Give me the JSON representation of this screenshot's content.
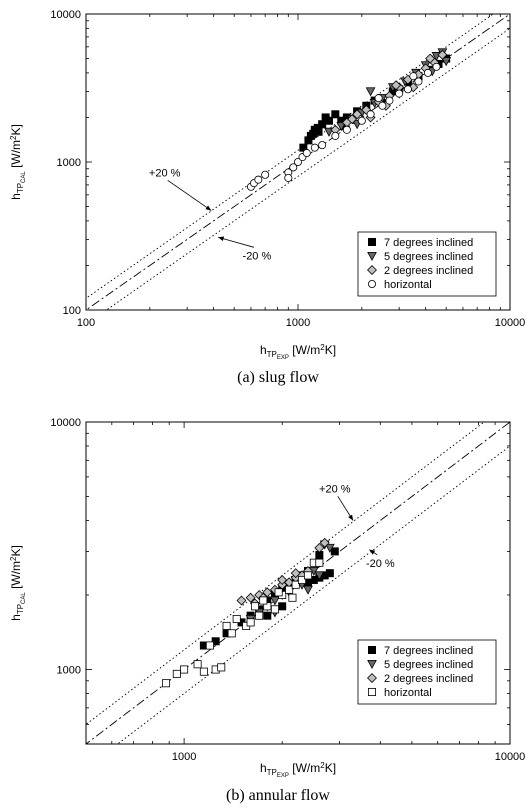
{
  "chart_data": [
    {
      "type": "scatter",
      "caption": "(a) slug flow",
      "xlabel": {
        "main": "h",
        "sub": "TP",
        "subsub": "EXP",
        "unit": " [W/m",
        "sup": "2",
        "tail": "K]"
      },
      "ylabel": {
        "main": "h",
        "sub": "TP",
        "subsub": "CAL",
        "unit": " [W/m",
        "sup": "2",
        "tail": "K]"
      },
      "xscale": "log",
      "yscale": "log",
      "xlim": [
        100,
        10000
      ],
      "ylim": [
        100,
        10000
      ],
      "xticks": [
        100,
        1000,
        10000
      ],
      "xtick_labels": [
        "100",
        "1000",
        "10000"
      ],
      "yticks": [
        100,
        1000,
        10000
      ],
      "ytick_labels": [
        "100",
        "1000",
        "10000"
      ],
      "grid": false,
      "legend_position": "bottom-right",
      "lines": [
        {
          "name": "parity",
          "style": "dash-dot",
          "factor": 1.0
        },
        {
          "name": "+20 %",
          "style": "dotted",
          "factor": 1.2
        },
        {
          "name": "-20 %",
          "style": "dotted",
          "factor": 0.8
        }
      ],
      "annotations": [
        {
          "text": "+20 %",
          "x": 235,
          "y": 800,
          "arrow_to": [
            390,
            470
          ]
        },
        {
          "text": "-20 %",
          "x": 640,
          "y": 220,
          "arrow_to": [
            420,
            310
          ]
        }
      ],
      "series": [
        {
          "name": "7 degrees inclined",
          "marker": "square",
          "fill": "#000000",
          "points": [
            [
              1060,
              1250
            ],
            [
              1120,
              1400
            ],
            [
              1180,
              1550
            ],
            [
              1240,
              1700
            ],
            [
              1300,
              1800
            ],
            [
              1150,
              1500
            ],
            [
              1200,
              1650
            ],
            [
              1400,
              1900
            ],
            [
              1500,
              2100
            ],
            [
              1600,
              1900
            ],
            [
              1700,
              2000
            ],
            [
              1900,
              2200
            ],
            [
              2100,
              2400
            ],
            [
              2300,
              2600
            ],
            [
              2500,
              2500
            ],
            [
              2800,
              3000
            ],
            [
              3000,
              3100
            ],
            [
              3300,
              3500
            ],
            [
              3700,
              3800
            ],
            [
              4200,
              4200
            ],
            [
              4600,
              4600
            ],
            [
              5000,
              5000
            ],
            [
              1250,
              1600
            ],
            [
              1350,
              2000
            ],
            [
              1650,
              1750
            ]
          ]
        },
        {
          "name": "5 degrees inclined",
          "marker": "triangle-down",
          "fill": "#666666",
          "points": [
            [
              1400,
              1600
            ],
            [
              1600,
              1750
            ],
            [
              1800,
              1950
            ],
            [
              2000,
              2150
            ],
            [
              2200,
              3000
            ],
            [
              2500,
              2700
            ],
            [
              2800,
              3200
            ],
            [
              3200,
              3500
            ],
            [
              3600,
              4000
            ],
            [
              4000,
              4500
            ],
            [
              4500,
              5200
            ],
            [
              4800,
              5500
            ],
            [
              1900,
              1800
            ],
            [
              2300,
              2500
            ],
            [
              3000,
              2900
            ],
            [
              4300,
              4100
            ],
            [
              5000,
              4800
            ]
          ]
        },
        {
          "name": "2 degrees inclined",
          "marker": "diamond",
          "fill": "#bfbfbf",
          "points": [
            [
              1500,
              1650
            ],
            [
              1700,
              1850
            ],
            [
              1900,
              2100
            ],
            [
              2100,
              2250
            ],
            [
              2400,
              2550
            ],
            [
              2700,
              2800
            ],
            [
              3000,
              3200
            ],
            [
              3300,
              3600
            ],
            [
              3700,
              3900
            ],
            [
              4000,
              4300
            ],
            [
              4400,
              4700
            ],
            [
              4800,
              5300
            ],
            [
              2200,
              2000
            ],
            [
              2600,
              2400
            ],
            [
              3500,
              3200
            ],
            [
              4200,
              5000
            ],
            [
              2900,
              3300
            ],
            [
              1800,
              1950
            ]
          ]
        },
        {
          "name": "horizontal",
          "marker": "circle",
          "fill": "#ffffff",
          "points": [
            [
              600,
              680
            ],
            [
              620,
              720
            ],
            [
              650,
              760
            ],
            [
              700,
              820
            ],
            [
              900,
              850
            ],
            [
              950,
              920
            ],
            [
              1000,
              1000
            ],
            [
              1050,
              1080
            ],
            [
              1100,
              1150
            ],
            [
              1300,
              1300
            ],
            [
              1500,
              1500
            ],
            [
              1700,
              1650
            ],
            [
              2000,
              1900
            ],
            [
              2200,
              2100
            ],
            [
              2500,
              2400
            ],
            [
              2700,
              2600
            ],
            [
              3000,
              2900
            ],
            [
              3300,
              3100
            ],
            [
              3700,
              3500
            ],
            [
              4100,
              4000
            ],
            [
              4500,
              4400
            ],
            [
              900,
              780
            ],
            [
              1200,
              1250
            ],
            [
              2400,
              2700
            ],
            [
              3500,
              3800
            ]
          ]
        }
      ]
    },
    {
      "type": "scatter",
      "caption": "(b) annular flow",
      "xlabel": {
        "main": "h",
        "sub": "TP",
        "subsub": "EXP",
        "unit": " [W/m",
        "sup": "2",
        "tail": "K]"
      },
      "ylabel": {
        "main": "h",
        "sub": "TP",
        "subsub": "CAL",
        "unit": " [W/m",
        "sup": "2",
        "tail": "K]"
      },
      "xscale": "log",
      "yscale": "log",
      "xlim": [
        500,
        10000
      ],
      "ylim": [
        500,
        10000
      ],
      "xticks": [
        1000,
        10000
      ],
      "xtick_labels": [
        "1000",
        "10000"
      ],
      "yticks": [
        1000,
        10000
      ],
      "ytick_labels": [
        "1000",
        "10000"
      ],
      "grid": false,
      "legend_position": "bottom-right",
      "lines": [
        {
          "name": "parity",
          "style": "dash-dot",
          "factor": 1.0
        },
        {
          "name": "+20 %",
          "style": "dotted",
          "factor": 1.2
        },
        {
          "name": "-20 %",
          "style": "dotted",
          "factor": 0.8
        }
      ],
      "annotations": [
        {
          "text": "+20 %",
          "x": 2900,
          "y": 5200,
          "arrow_to": [
            3300,
            4000
          ]
        },
        {
          "text": "-20 %",
          "x": 4000,
          "y": 2600,
          "arrow_to": [
            3700,
            3050
          ]
        }
      ],
      "series": [
        {
          "name": "7 degrees inclined",
          "marker": "square",
          "fill": "#000000",
          "points": [
            [
              1150,
              1250
            ],
            [
              1250,
              1300
            ],
            [
              1350,
              1400
            ],
            [
              1500,
              1550
            ],
            [
              1600,
              1650
            ],
            [
              1700,
              1750
            ],
            [
              1800,
              1900
            ],
            [
              1900,
              2000
            ],
            [
              2000,
              2100
            ],
            [
              2100,
              2200
            ],
            [
              2200,
              2300
            ],
            [
              2300,
              2400
            ],
            [
              2400,
              2250
            ],
            [
              2500,
              2300
            ],
            [
              2600,
              2350
            ],
            [
              2700,
              2400
            ],
            [
              2800,
              2450
            ],
            [
              2900,
              3000
            ],
            [
              2600,
              2900
            ],
            [
              2000,
              1800
            ],
            [
              1800,
              1650
            ],
            [
              2400,
              2500
            ]
          ]
        },
        {
          "name": "5 degrees inclined",
          "marker": "triangle-down",
          "fill": "#666666",
          "points": [
            [
              1600,
              1600
            ],
            [
              1700,
              1700
            ],
            [
              1800,
              1800
            ],
            [
              1900,
              1900
            ],
            [
              2000,
              2000
            ],
            [
              2100,
              2050
            ],
            [
              2300,
              2200
            ],
            [
              2500,
              2500
            ],
            [
              2700,
              3200
            ],
            [
              2800,
              3100
            ],
            [
              2200,
              2300
            ],
            [
              1900,
              1700
            ],
            [
              2600,
              2400
            ],
            [
              2400,
              2100
            ]
          ]
        },
        {
          "name": "2 degrees inclined",
          "marker": "diamond",
          "fill": "#bfbfbf",
          "points": [
            [
              1500,
              1900
            ],
            [
              1600,
              1950
            ],
            [
              1700,
              2000
            ],
            [
              1800,
              2050
            ],
            [
              1900,
              2100
            ],
            [
              2000,
              2200
            ],
            [
              2100,
              2250
            ],
            [
              2200,
              2350
            ],
            [
              2300,
              2400
            ],
            [
              2400,
              2500
            ],
            [
              2600,
              3100
            ],
            [
              2700,
              3250
            ],
            [
              1650,
              1850
            ],
            [
              1750,
              1950
            ],
            [
              2000,
              2300
            ],
            [
              2200,
              2450
            ]
          ]
        },
        {
          "name": "horizontal",
          "marker": "square",
          "fill": "#ffffff",
          "points": [
            [
              880,
              880
            ],
            [
              950,
              960
            ],
            [
              1000,
              1000
            ],
            [
              1100,
              1050
            ],
            [
              1200,
              1250
            ],
            [
              1150,
              980
            ],
            [
              1250,
              1000
            ],
            [
              1300,
              1020
            ],
            [
              1400,
              1400
            ],
            [
              1450,
              1600
            ],
            [
              1550,
              1500
            ],
            [
              1600,
              1550
            ],
            [
              1700,
              1650
            ],
            [
              1800,
              1800
            ],
            [
              1900,
              1750
            ],
            [
              2000,
              2000
            ],
            [
              2100,
              2100
            ],
            [
              2200,
              2200
            ],
            [
              2300,
              2300
            ],
            [
              2400,
              2400
            ],
            [
              2500,
              2700
            ],
            [
              2600,
              2700
            ],
            [
              1350,
              1500
            ],
            [
              1650,
              1800
            ],
            [
              1750,
              1900
            ],
            [
              1950,
              2050
            ],
            [
              2150,
              1950
            ]
          ]
        }
      ]
    }
  ]
}
